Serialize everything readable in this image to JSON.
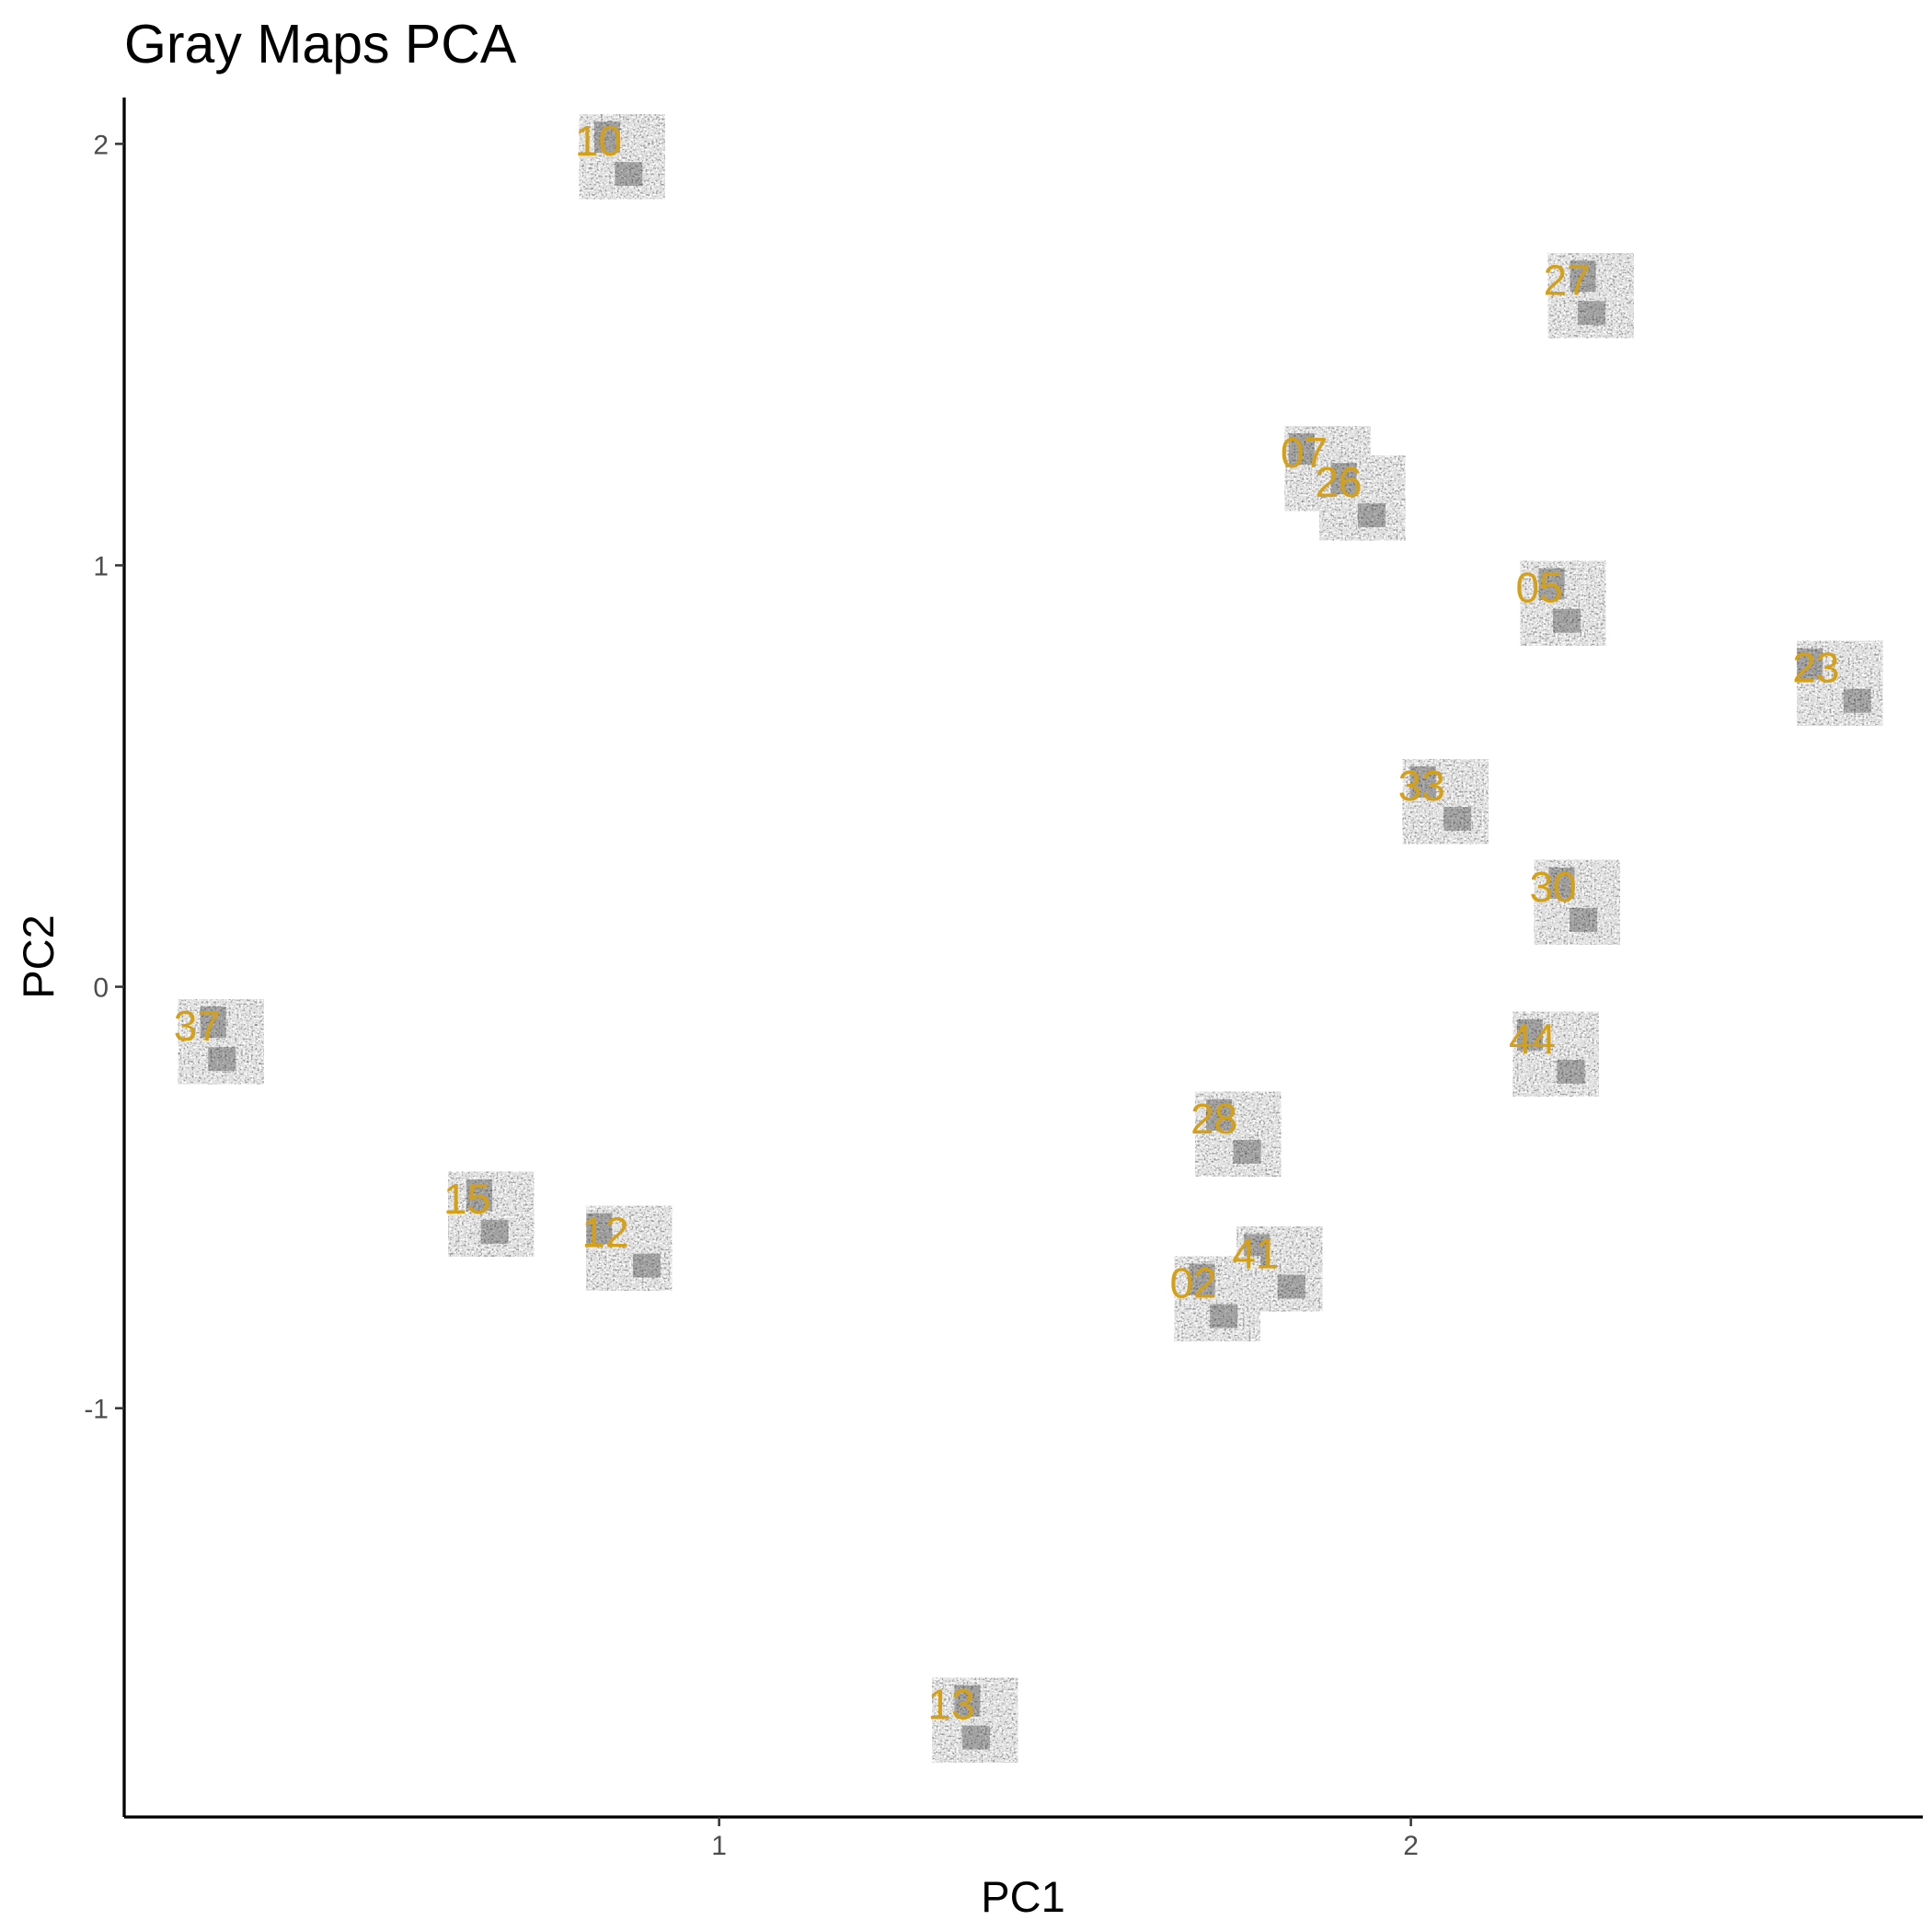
{
  "chart_data": {
    "type": "scatter",
    "title": "Gray Maps PCA",
    "xlabel": "PC1",
    "ylabel": "PC2",
    "xlim": [
      0.14,
      2.74
    ],
    "ylim": [
      -1.97,
      2.11
    ],
    "xticks": [
      1,
      2
    ],
    "yticks": [
      -1,
      0,
      1,
      2
    ],
    "grid": false,
    "legend": "none",
    "marker": "grayscale map thumbnail",
    "label_color": "#d4a017",
    "points": [
      {
        "label": "10",
        "x": 0.86,
        "y": 1.97
      },
      {
        "label": "27",
        "x": 2.26,
        "y": 1.64
      },
      {
        "label": "07",
        "x": 1.88,
        "y": 1.23
      },
      {
        "label": "26",
        "x": 1.93,
        "y": 1.16
      },
      {
        "label": "05",
        "x": 2.22,
        "y": 0.91
      },
      {
        "label": "23",
        "x": 2.62,
        "y": 0.72
      },
      {
        "label": "33",
        "x": 2.05,
        "y": 0.44
      },
      {
        "label": "30",
        "x": 2.24,
        "y": 0.2
      },
      {
        "label": "37",
        "x": 0.28,
        "y": -0.13
      },
      {
        "label": "44",
        "x": 2.21,
        "y": -0.16
      },
      {
        "label": "28",
        "x": 1.75,
        "y": -0.35
      },
      {
        "label": "15",
        "x": 0.67,
        "y": -0.54
      },
      {
        "label": "12",
        "x": 0.87,
        "y": -0.62
      },
      {
        "label": "41",
        "x": 1.81,
        "y": -0.67
      },
      {
        "label": "02",
        "x": 1.72,
        "y": -0.74
      },
      {
        "label": "13",
        "x": 1.37,
        "y": -1.74
      }
    ]
  }
}
